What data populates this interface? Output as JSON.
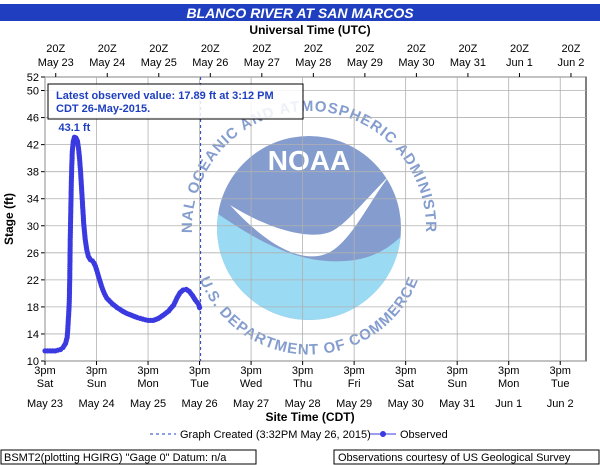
{
  "chart_data": {
    "type": "line",
    "title": "BLANCO RIVER AT SAN MARCOS",
    "top_axis_title": "Universal Time (UTC)",
    "xlabel": "Site Time (CDT)",
    "ylabel": "Stage (ft)",
    "ylim": [
      10,
      52
    ],
    "y_ticks": [
      10,
      14,
      18,
      22,
      26,
      30,
      34,
      38,
      42,
      46,
      50,
      52
    ],
    "x_range_days": [
      0,
      10.5
    ],
    "top_ticks": [
      {
        "l1": "20Z",
        "l2": "May 23"
      },
      {
        "l1": "20Z",
        "l2": "May 24"
      },
      {
        "l1": "20Z",
        "l2": "May 25"
      },
      {
        "l1": "20Z",
        "l2": "May 26"
      },
      {
        "l1": "20Z",
        "l2": "May 27"
      },
      {
        "l1": "20Z",
        "l2": "May 28"
      },
      {
        "l1": "20Z",
        "l2": "May 29"
      },
      {
        "l1": "20Z",
        "l2": "May 30"
      },
      {
        "l1": "20Z",
        "l2": "May 31"
      },
      {
        "l1": "20Z",
        "l2": "Jun  1"
      },
      {
        "l1": "20Z",
        "l2": "Jun  2"
      }
    ],
    "bottom_ticks": [
      {
        "l1": "3pm",
        "l2": "Sat",
        "l3": "May 23"
      },
      {
        "l1": "3pm",
        "l2": "Sun",
        "l3": "May 24"
      },
      {
        "l1": "3pm",
        "l2": "Mon",
        "l3": "May 25"
      },
      {
        "l1": "3pm",
        "l2": "Tue",
        "l3": "May 26"
      },
      {
        "l1": "3pm",
        "l2": "Wed",
        "l3": "May 27"
      },
      {
        "l1": "3pm",
        "l2": "Thu",
        "l3": "May 28"
      },
      {
        "l1": "3pm",
        "l2": "Fri",
        "l3": "May 29"
      },
      {
        "l1": "3pm",
        "l2": "Sat",
        "l3": "May 30"
      },
      {
        "l1": "3pm",
        "l2": "Sun",
        "l3": "May 31"
      },
      {
        "l1": "3pm",
        "l2": "Mon",
        "l3": "Jun  1"
      },
      {
        "l1": "3pm",
        "l2": "Tue",
        "l3": "Jun  2"
      }
    ],
    "latest_box": {
      "line1": "Latest observed value: 17.89 ft at 3:12 PM",
      "line2": "CDT 26-May-2015."
    },
    "peak_label": "43.1 ft",
    "peak_point": [
      0.57,
      43.1
    ],
    "graph_created_day": 3.02,
    "legend": {
      "created": "Graph Created (3:32PM May 26, 2015)",
      "observed": "Observed"
    },
    "series": [
      {
        "name": "Observed",
        "color": "#3a3ae0",
        "points": [
          [
            0.0,
            11.5
          ],
          [
            0.05,
            11.5
          ],
          [
            0.1,
            11.5
          ],
          [
            0.15,
            11.5
          ],
          [
            0.2,
            11.5
          ],
          [
            0.25,
            11.6
          ],
          [
            0.3,
            11.7
          ],
          [
            0.35,
            12.0
          ],
          [
            0.4,
            12.6
          ],
          [
            0.43,
            13.5
          ],
          [
            0.44,
            14.5
          ],
          [
            0.46,
            17.0
          ],
          [
            0.47,
            18.5
          ],
          [
            0.48,
            22.0
          ],
          [
            0.49,
            28.0
          ],
          [
            0.5,
            32.0
          ],
          [
            0.51,
            36.0
          ],
          [
            0.52,
            39.0
          ],
          [
            0.53,
            41.0
          ],
          [
            0.55,
            42.5
          ],
          [
            0.57,
            43.1
          ],
          [
            0.6,
            43.0
          ],
          [
            0.63,
            42.5
          ],
          [
            0.65,
            41.5
          ],
          [
            0.67,
            40.0
          ],
          [
            0.69,
            38.0
          ],
          [
            0.71,
            35.5
          ],
          [
            0.73,
            33.0
          ],
          [
            0.75,
            30.5
          ],
          [
            0.78,
            28.0
          ],
          [
            0.81,
            26.5
          ],
          [
            0.84,
            25.5
          ],
          [
            0.88,
            25.0
          ],
          [
            0.92,
            24.8
          ],
          [
            0.95,
            24.5
          ],
          [
            0.98,
            24.0
          ],
          [
            1.02,
            23.0
          ],
          [
            1.06,
            22.0
          ],
          [
            1.1,
            21.0
          ],
          [
            1.15,
            20.0
          ],
          [
            1.2,
            19.3
          ],
          [
            1.3,
            18.5
          ],
          [
            1.4,
            17.9
          ],
          [
            1.5,
            17.4
          ],
          [
            1.6,
            17.0
          ],
          [
            1.7,
            16.7
          ],
          [
            1.8,
            16.4
          ],
          [
            1.9,
            16.2
          ],
          [
            2.0,
            16.0
          ],
          [
            2.1,
            16.0
          ],
          [
            2.2,
            16.3
          ],
          [
            2.3,
            16.8
          ],
          [
            2.4,
            17.4
          ],
          [
            2.5,
            18.3
          ],
          [
            2.56,
            19.3
          ],
          [
            2.62,
            20.1
          ],
          [
            2.68,
            20.5
          ],
          [
            2.74,
            20.6
          ],
          [
            2.8,
            20.3
          ],
          [
            2.86,
            19.7
          ],
          [
            2.92,
            19.0
          ],
          [
            2.98,
            18.4
          ],
          [
            3.0,
            17.89
          ]
        ]
      }
    ]
  },
  "logo": {
    "wordmark": "NOAA",
    "ring_text": "NATIONAL OCEANIC AND ATMOSPHERIC ADMINISTRATION",
    "ring_text_bottom": "U.S. DEPARTMENT OF COMMERCE"
  },
  "footer": {
    "left": "BSMT2(plotting HGIRG) \"Gage 0\" Datum: n/a",
    "right": "Observations courtesy of US Geological Survey"
  }
}
